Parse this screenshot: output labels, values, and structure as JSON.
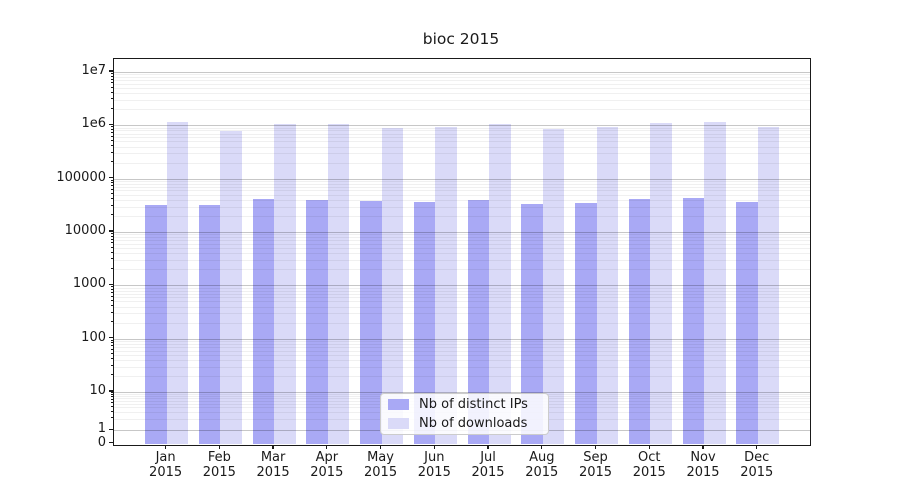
{
  "chart_data": {
    "type": "bar",
    "title": "bioc 2015",
    "categories": [
      "Jan",
      "Feb",
      "Mar",
      "Apr",
      "May",
      "Jun",
      "Jul",
      "Aug",
      "Sep",
      "Oct",
      "Nov",
      "Dec"
    ],
    "x_year": "2015",
    "series": [
      {
        "name": "Nb of distinct IPs",
        "color": "#a9a9f5",
        "values": [
          31500,
          31500,
          41000,
          40500,
          38500,
          37000,
          39500,
          33000,
          35500,
          41500,
          43500,
          36500
        ]
      },
      {
        "name": "Nb of downloads",
        "color": "#dadaf8",
        "values": [
          1150000,
          780000,
          1050000,
          1040000,
          880000,
          930000,
          1060000,
          860000,
          930000,
          1110000,
          1130000,
          945000
        ]
      }
    ],
    "yaxis": {
      "scale": "log (with 0 baseline)",
      "ticks": [
        {
          "label": "1e7",
          "value": 10000000
        },
        {
          "label": "1e6",
          "value": 1000000
        },
        {
          "label": "100000",
          "value": 100000
        },
        {
          "label": "10000",
          "value": 10000
        },
        {
          "label": "1000",
          "value": 1000
        },
        {
          "label": "100",
          "value": 100
        },
        {
          "label": "10",
          "value": 10
        },
        {
          "label": "1",
          "value": 1
        },
        {
          "label": "0",
          "value": 0
        }
      ]
    },
    "grid": "horizontal, log minors + decade majors, visible through bars",
    "legend": {
      "position": "lower center",
      "entries": [
        "Nb of distinct IPs",
        "Nb of downloads"
      ]
    }
  },
  "colors": {
    "bar_distinct_ips": "#a9a9f5",
    "bar_downloads": "#dadaf8",
    "grid_major": "rgba(0,0,0,0.22)",
    "grid_minor": "rgba(0,0,0,0.06)",
    "spine": "#1a1a1a",
    "legend_border": "#cccccc",
    "text": "#1a1a1a"
  }
}
